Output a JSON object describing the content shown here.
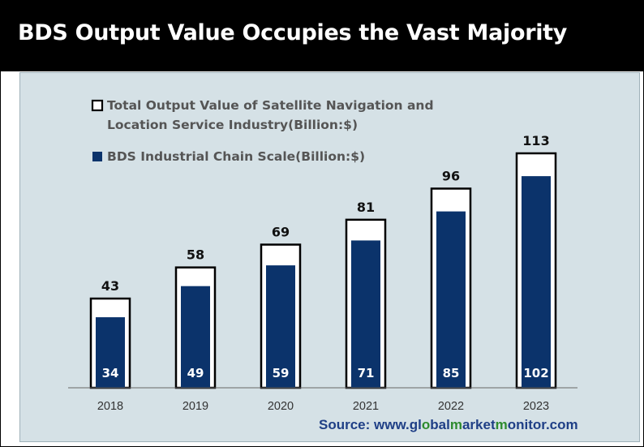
{
  "title": "BDS Output Value Occupies the Vast Majority",
  "source": {
    "prefix": "Source: www.",
    "segments": [
      {
        "text": "gl",
        "highlight": false
      },
      {
        "text": "o",
        "highlight": true
      },
      {
        "text": "bal",
        "highlight": false
      },
      {
        "text": "m",
        "highlight": true
      },
      {
        "text": "arket",
        "highlight": false
      },
      {
        "text": "m",
        "highlight": true
      },
      {
        "text": "onitor",
        "highlight": false
      }
    ],
    "suffix": ".com"
  },
  "colors": {
    "header": "#000000",
    "panel": "#d5e1e6",
    "inner_bar": "#0b336b",
    "outer_bar_fill": "#ffffff",
    "outer_bar_stroke": "#000000",
    "source_text": "#1f3f86",
    "source_highlight": "#2e8b2e"
  },
  "chart_data": {
    "type": "bar",
    "categories": [
      "2018",
      "2019",
      "2020",
      "2021",
      "2022",
      "2023"
    ],
    "series": [
      {
        "name": "Total Output Value of Satellite Navigation and Location Service Industry(Billion:$)",
        "legend_lines": [
          "Total Output Value of Satellite Navigation and",
          "Location Service Industry(Billion:$)"
        ],
        "values": [
          43,
          58,
          69,
          81,
          96,
          113
        ]
      },
      {
        "name": "BDS Industrial Chain Scale(Billion:$)",
        "legend_lines": [
          "BDS Industrial Chain Scale(Billion:$)"
        ],
        "values": [
          34,
          49,
          59,
          71,
          85,
          102
        ]
      }
    ],
    "title": "BDS Output Value Occupies the Vast Majority",
    "xlabel": "",
    "ylabel": "",
    "ylim": [
      0,
      113
    ],
    "grid": false,
    "legend_position": "top-left",
    "overlapped": true
  }
}
